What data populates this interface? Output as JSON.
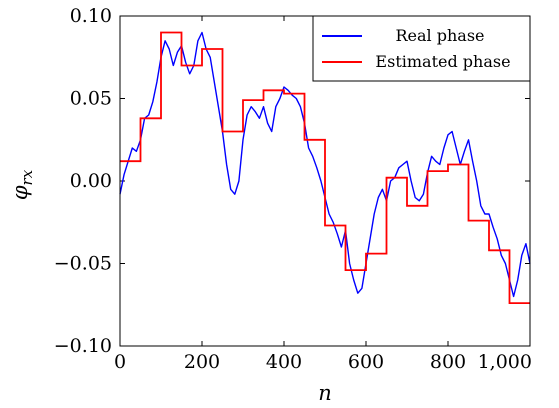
{
  "chart_data": {
    "type": "line",
    "xlabel": "n",
    "ylabel": "φ",
    "ylabel_subscript": "rx",
    "xlim": [
      0,
      1000
    ],
    "ylim": [
      -0.1,
      0.1
    ],
    "x_ticks": [
      0,
      200,
      400,
      600,
      800,
      1000
    ],
    "x_tick_labels": [
      "0",
      "200",
      "400",
      "600",
      "800",
      "1,000"
    ],
    "y_ticks": [
      -0.1,
      -0.05,
      0,
      0.05,
      0.1
    ],
    "y_tick_labels": [
      "−0.10",
      "−0.05",
      "0.00",
      "0.05",
      "0.10"
    ],
    "grid": false,
    "legend_position": "top-right",
    "series": [
      {
        "name": "Real phase",
        "color": "#0000ff",
        "x": [
          0,
          10,
          20,
          30,
          40,
          50,
          60,
          70,
          80,
          90,
          100,
          110,
          120,
          130,
          140,
          150,
          160,
          170,
          180,
          190,
          200,
          210,
          220,
          230,
          240,
          250,
          260,
          270,
          280,
          290,
          300,
          310,
          320,
          330,
          340,
          350,
          360,
          370,
          380,
          390,
          400,
          410,
          420,
          430,
          440,
          450,
          460,
          470,
          480,
          490,
          500,
          510,
          520,
          530,
          540,
          550,
          560,
          570,
          580,
          590,
          600,
          610,
          620,
          630,
          640,
          650,
          660,
          670,
          680,
          690,
          700,
          710,
          720,
          730,
          740,
          750,
          760,
          770,
          780,
          790,
          800,
          810,
          820,
          830,
          840,
          850,
          860,
          870,
          880,
          890,
          900,
          910,
          920,
          930,
          940,
          950,
          960,
          970,
          980,
          990,
          1000
        ],
        "values": [
          -0.008,
          0.004,
          0.012,
          0.02,
          0.018,
          0.025,
          0.038,
          0.04,
          0.048,
          0.06,
          0.075,
          0.085,
          0.08,
          0.07,
          0.078,
          0.082,
          0.072,
          0.065,
          0.07,
          0.085,
          0.09,
          0.08,
          0.075,
          0.06,
          0.045,
          0.03,
          0.01,
          -0.005,
          -0.008,
          0.0,
          0.025,
          0.04,
          0.045,
          0.042,
          0.038,
          0.045,
          0.035,
          0.03,
          0.045,
          0.05,
          0.057,
          0.055,
          0.052,
          0.05,
          0.045,
          0.035,
          0.02,
          0.015,
          0.008,
          0.0,
          -0.01,
          -0.02,
          -0.025,
          -0.032,
          -0.04,
          -0.03,
          -0.05,
          -0.06,
          -0.068,
          -0.065,
          -0.05,
          -0.035,
          -0.02,
          -0.01,
          -0.005,
          -0.012,
          0.0,
          0.002,
          0.008,
          0.01,
          0.012,
          0.0,
          -0.01,
          -0.012,
          -0.008,
          0.005,
          0.015,
          0.012,
          0.01,
          0.02,
          0.028,
          0.03,
          0.02,
          0.01,
          0.018,
          0.025,
          0.012,
          0.0,
          -0.015,
          -0.02,
          -0.02,
          -0.028,
          -0.035,
          -0.045,
          -0.05,
          -0.06,
          -0.07,
          -0.06,
          -0.045,
          -0.038,
          -0.05
        ]
      },
      {
        "name": "Estimated phase",
        "color": "#ff0000",
        "type": "step",
        "x_edges": [
          0,
          50,
          100,
          150,
          200,
          250,
          300,
          350,
          400,
          450,
          500,
          550,
          600,
          650,
          700,
          750,
          800,
          850,
          900,
          950,
          1000
        ],
        "values": [
          0.012,
          0.038,
          0.09,
          0.07,
          0.08,
          0.03,
          0.049,
          0.055,
          0.053,
          0.025,
          -0.027,
          -0.054,
          -0.044,
          0.002,
          -0.015,
          0.006,
          0.01,
          -0.024,
          -0.042,
          -0.074
        ]
      }
    ]
  }
}
